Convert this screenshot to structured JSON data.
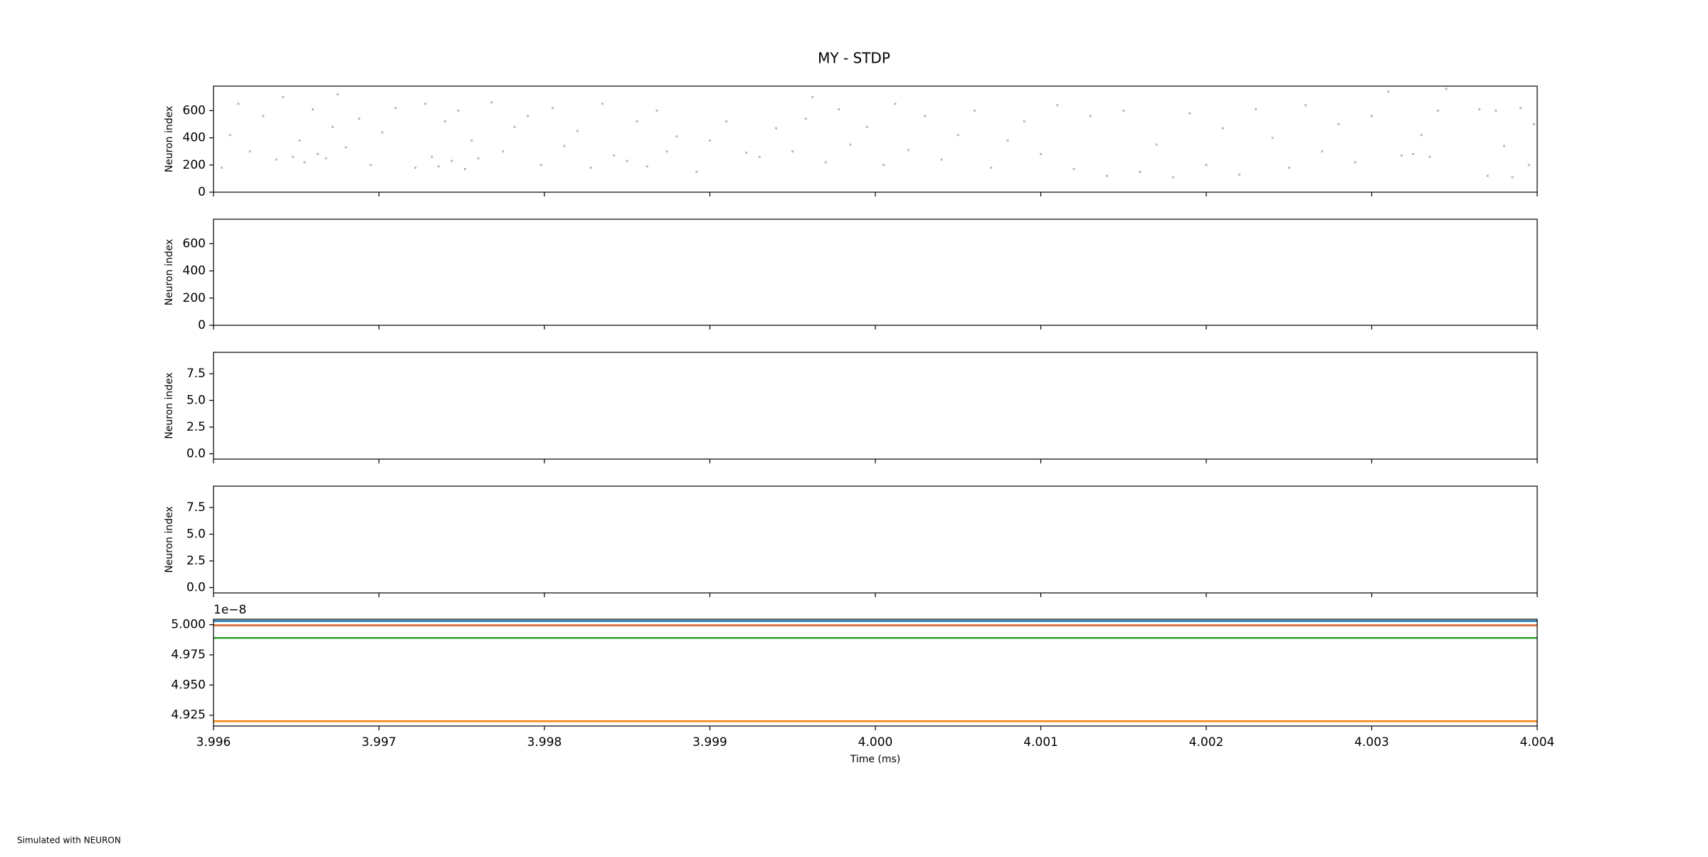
{
  "title": "MY - STDP",
  "footnote": "Simulated with NEURON",
  "chart_data": [
    {
      "type": "scatter",
      "ylabel": "Neuron index",
      "color": "#808080",
      "xlim": [
        3.996,
        4.004
      ],
      "xticks": [
        3.996,
        3.997,
        3.998,
        3.999,
        4,
        4.001,
        4.002,
        4.003,
        4.004
      ],
      "ylim": [
        0,
        780
      ],
      "yticks": [
        0,
        200,
        400,
        600
      ],
      "x": [
        3.99605,
        3.9961,
        3.99615,
        3.99622,
        3.9963,
        3.99638,
        3.99642,
        3.99648,
        3.99652,
        3.99655,
        3.9966,
        3.99663,
        3.99668,
        3.99672,
        3.99675,
        3.9968,
        3.99688,
        3.99695,
        3.99702,
        3.9971,
        3.99722,
        3.99728,
        3.99732,
        3.99736,
        3.9974,
        3.99744,
        3.99748,
        3.99752,
        3.99756,
        3.9976,
        3.99768,
        3.99775,
        3.99782,
        3.9979,
        3.99798,
        3.99805,
        3.99812,
        3.9982,
        3.99828,
        3.99835,
        3.99842,
        3.9985,
        3.99856,
        3.99862,
        3.99868,
        3.99874,
        3.9988,
        3.99892,
        3.999,
        3.9991,
        3.99922,
        3.9993,
        3.9994,
        3.9995,
        3.99958,
        3.99962,
        3.9997,
        3.99978,
        3.99985,
        3.99995,
        4.00005,
        4.00012,
        4.0002,
        4.0003,
        4.0004,
        4.0005,
        4.0006,
        4.0007,
        4.0008,
        4.0009,
        4.001,
        4.0011,
        4.0012,
        4.0013,
        4.0014,
        4.0015,
        4.0016,
        4.0017,
        4.0018,
        4.0019,
        4.002,
        4.0021,
        4.0022,
        4.0023,
        4.0024,
        4.0025,
        4.0026,
        4.0027,
        4.0028,
        4.0029,
        4.003,
        4.0031,
        4.00318,
        4.00325,
        4.0033,
        4.00335,
        4.0034,
        4.00345,
        4.00365,
        4.0037,
        4.00375,
        4.0038,
        4.00385,
        4.0039,
        4.00395,
        4.00398
      ],
      "y": [
        180,
        420,
        650,
        300,
        560,
        240,
        700,
        260,
        380,
        220,
        610,
        280,
        250,
        480,
        720,
        330,
        540,
        200,
        440,
        620,
        180,
        650,
        260,
        190,
        520,
        230,
        600,
        170,
        380,
        250,
        660,
        300,
        480,
        560,
        200,
        620,
        340,
        450,
        180,
        650,
        270,
        230,
        520,
        190,
        600,
        300,
        410,
        150,
        380,
        520,
        290,
        260,
        470,
        300,
        540,
        700,
        220,
        610,
        350,
        480,
        200,
        650,
        310,
        560,
        240,
        420,
        600,
        180,
        380,
        520,
        280,
        640,
        170,
        560,
        120,
        600,
        150,
        350,
        110,
        580,
        200,
        470,
        130,
        610,
        400,
        180,
        640,
        300,
        500,
        220,
        560,
        740,
        270,
        280,
        420,
        260,
        600,
        760,
        610,
        120,
        600,
        340,
        110,
        620,
        200,
        500
      ]
    },
    {
      "type": "scatter",
      "ylabel": "Neuron index",
      "color": "#808080",
      "xlim": [
        3.996,
        4.004
      ],
      "xticks": [
        3.996,
        3.997,
        3.998,
        3.999,
        4,
        4.001,
        4.002,
        4.003,
        4.004
      ],
      "ylim": [
        0,
        780
      ],
      "yticks": [
        0,
        200,
        400,
        600
      ]
    },
    {
      "type": "scatter",
      "ylabel": "Neuron index",
      "color": "#808080",
      "xlim": [
        3.996,
        4.004
      ],
      "xticks": [
        3.996,
        3.997,
        3.998,
        3.999,
        4,
        4.001,
        4.002,
        4.003,
        4.004
      ],
      "ylim": [
        -0.5,
        9.5
      ],
      "yticks": [
        {
          "value": 0,
          "label": "0.0"
        },
        2.5,
        {
          "value": 5,
          "label": "5.0"
        },
        7.5
      ]
    },
    {
      "type": "scatter",
      "ylabel": "Neuron index",
      "color": "#808080",
      "xlim": [
        3.996,
        4.004
      ],
      "xticks": [
        3.996,
        3.997,
        3.998,
        3.999,
        4,
        4.001,
        4.002,
        4.003,
        4.004
      ],
      "ylim": [
        -0.5,
        9.5
      ],
      "yticks": [
        {
          "value": 0,
          "label": "0.0"
        },
        2.5,
        {
          "value": 5,
          "label": "5.0"
        },
        7.5
      ]
    },
    {
      "type": "line",
      "xlabel": "Time (ms)",
      "offset_label": "1e−8",
      "xlim": [
        3.996,
        4.004
      ],
      "xticks": [
        3.996,
        3.997,
        3.998,
        3.999,
        {
          "value": 4,
          "label": "4.000"
        },
        4.001,
        4.002,
        4.003,
        4.004
      ],
      "ylim": [
        4.916,
        5.0045
      ],
      "yticks": [
        {
          "value": 5,
          "label": "5.000"
        },
        4.975,
        {
          "value": 4.95,
          "label": "4.950"
        },
        4.925
      ],
      "x": [
        3.996,
        4.004
      ],
      "series": [
        {
          "color": "#1f77b4",
          "values": [
            5.003,
            5.003
          ]
        },
        {
          "color": "#d6622a",
          "values": [
            4.9995,
            4.9995
          ]
        },
        {
          "color": "#2ca02c",
          "values": [
            4.989,
            4.989
          ]
        },
        {
          "color": "#ff7f0e",
          "values": [
            4.92,
            4.92
          ]
        }
      ]
    }
  ]
}
